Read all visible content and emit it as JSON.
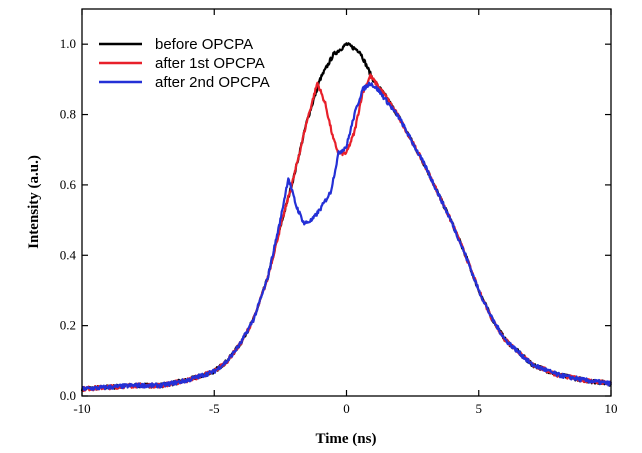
{
  "chart_data": {
    "type": "line",
    "xlabel": "Time (ns)",
    "ylabel": "Intensity (a.u.)",
    "xlim": [
      -10,
      10
    ],
    "ylim": [
      0,
      1.1
    ],
    "x_ticks": [
      -10,
      -5,
      0,
      5,
      10
    ],
    "y_ticks": [
      "0.0",
      "0.2",
      "0.4",
      "0.6",
      "0.8",
      "1.0"
    ],
    "legend_position": "top-left",
    "series": [
      {
        "name": "before OPCPA",
        "color": "#000000",
        "x": [
          -10,
          -9,
          -8,
          -7,
          -6,
          -5,
          -4.5,
          -4,
          -3.5,
          -3,
          -2.5,
          -2,
          -1.5,
          -1,
          -0.5,
          0,
          0.5,
          1,
          1.5,
          2,
          2.5,
          3,
          3.5,
          4,
          4.5,
          5,
          5.5,
          6,
          7,
          8,
          9,
          10
        ],
        "values": [
          0.02,
          0.025,
          0.03,
          0.03,
          0.045,
          0.07,
          0.1,
          0.15,
          0.22,
          0.33,
          0.48,
          0.62,
          0.78,
          0.9,
          0.97,
          1.0,
          0.98,
          0.9,
          0.85,
          0.79,
          0.72,
          0.65,
          0.57,
          0.49,
          0.4,
          0.3,
          0.22,
          0.16,
          0.09,
          0.06,
          0.045,
          0.035
        ]
      },
      {
        "name": "after 1st OPCPA",
        "color": "#e8202a",
        "x": [
          -10,
          -9,
          -8,
          -7,
          -6,
          -5,
          -4.5,
          -4,
          -3.5,
          -3,
          -2.5,
          -2,
          -1.5,
          -1.1,
          -0.8,
          -0.5,
          -0.3,
          0,
          0.3,
          0.6,
          0.9,
          1.2,
          1.5,
          2,
          2.5,
          3,
          3.5,
          4,
          4.5,
          5,
          5.5,
          6,
          7,
          8,
          9,
          10
        ],
        "values": [
          0.02,
          0.025,
          0.03,
          0.03,
          0.045,
          0.07,
          0.1,
          0.15,
          0.22,
          0.33,
          0.48,
          0.62,
          0.78,
          0.89,
          0.83,
          0.73,
          0.69,
          0.69,
          0.75,
          0.86,
          0.91,
          0.88,
          0.85,
          0.79,
          0.72,
          0.65,
          0.57,
          0.49,
          0.4,
          0.3,
          0.22,
          0.16,
          0.09,
          0.06,
          0.045,
          0.035
        ]
      },
      {
        "name": "after 2nd OPCPA",
        "color": "#2430d6",
        "x": [
          -10,
          -9,
          -8,
          -7,
          -6,
          -5,
          -4.5,
          -4,
          -3.5,
          -3,
          -2.5,
          -2.2,
          -1.9,
          -1.6,
          -1.3,
          -1,
          -0.6,
          -0.3,
          0,
          0.3,
          0.6,
          0.9,
          1.2,
          1.5,
          2,
          2.5,
          3,
          3.5,
          4,
          4.5,
          5,
          5.5,
          6,
          7,
          8,
          9,
          10
        ],
        "values": [
          0.02,
          0.025,
          0.03,
          0.03,
          0.045,
          0.07,
          0.1,
          0.15,
          0.22,
          0.33,
          0.5,
          0.62,
          0.54,
          0.49,
          0.5,
          0.53,
          0.58,
          0.69,
          0.71,
          0.8,
          0.87,
          0.89,
          0.87,
          0.84,
          0.79,
          0.72,
          0.65,
          0.57,
          0.49,
          0.4,
          0.3,
          0.22,
          0.16,
          0.09,
          0.06,
          0.045,
          0.035
        ]
      }
    ]
  }
}
